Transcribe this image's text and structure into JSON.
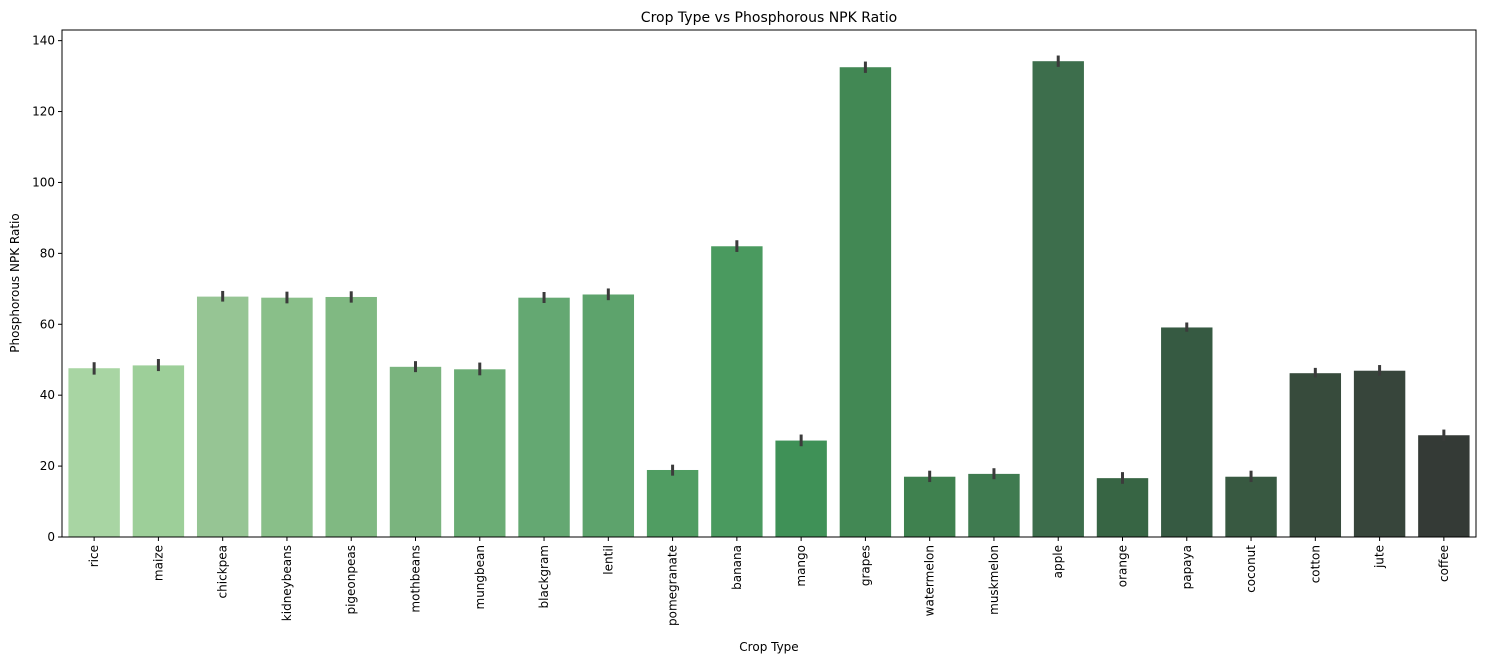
{
  "chart_data": {
    "type": "bar",
    "title": "Crop Type vs Phosphorous NPK Ratio",
    "xlabel": "Crop Type",
    "ylabel": "Phosphorous NPK Ratio",
    "ylim": [
      0,
      143
    ],
    "yticks": [
      0,
      20,
      40,
      60,
      80,
      100,
      120,
      140
    ],
    "categories": [
      "rice",
      "maize",
      "chickpea",
      "kidneybeans",
      "pigeonpeas",
      "mothbeans",
      "mungbean",
      "blackgram",
      "lentil",
      "pomegranate",
      "banana",
      "mango",
      "grapes",
      "watermelon",
      "muskmelon",
      "apple",
      "orange",
      "papaya",
      "coconut",
      "cotton",
      "jute",
      "coffee"
    ],
    "values": [
      47.6,
      48.4,
      67.8,
      67.5,
      67.7,
      48.0,
      47.3,
      67.5,
      68.4,
      18.9,
      82.0,
      27.2,
      132.5,
      17.0,
      17.8,
      134.2,
      16.6,
      59.1,
      17.0,
      46.2,
      46.9,
      28.7
    ],
    "error_low": [
      45.8,
      46.8,
      66.4,
      65.9,
      66.1,
      46.5,
      45.6,
      66.0,
      66.8,
      17.3,
      80.4,
      25.6,
      130.9,
      15.5,
      16.3,
      132.6,
      15.0,
      57.9,
      15.5,
      45.0,
      45.5,
      27.2
    ],
    "error_high": [
      49.3,
      50.2,
      69.4,
      69.2,
      69.3,
      49.6,
      49.2,
      69.1,
      70.1,
      20.4,
      83.7,
      28.9,
      134.1,
      18.7,
      19.4,
      135.8,
      18.3,
      60.5,
      18.7,
      47.7,
      48.5,
      30.3
    ],
    "colors": [
      "#a8d5a3",
      "#9dcf99",
      "#96c594",
      "#89bf89",
      "#80b982",
      "#7ab47e",
      "#6bad75",
      "#64a872",
      "#5da36c",
      "#509d62",
      "#4a9a5f",
      "#3f9157",
      "#428854",
      "#3f814f",
      "#3f7b50",
      "#3d6e4c",
      "#376544",
      "#365a42",
      "#385941",
      "#374b3c",
      "#37453b",
      "#343a36"
    ],
    "error_color": "#3b3b3b",
    "grid": false,
    "legend": "none"
  }
}
